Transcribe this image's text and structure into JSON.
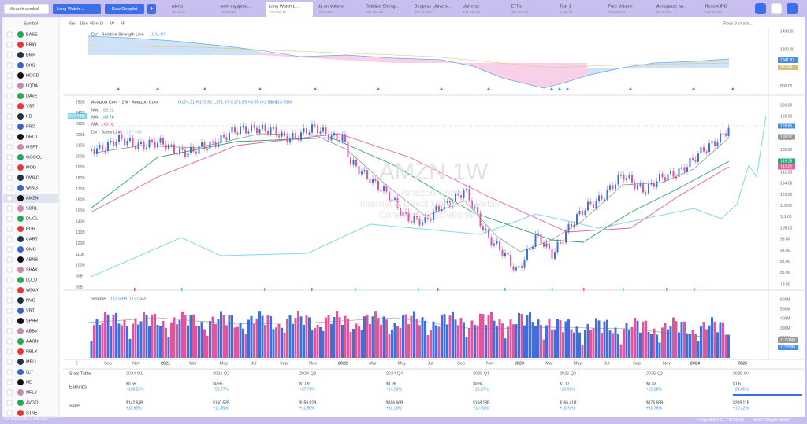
{
  "topbar": {
    "search": "Search symbol",
    "watchlist": "Long Watch ...",
    "new_button": "New Deeplist",
    "add_button": "+",
    "tabs": [
      {
        "name": "Alerts",
        "count": "86 Alerts"
      },
      {
        "name": "semi equipme...",
        "count": "18 Stocks"
      },
      {
        "name": "Long Watch L...",
        "count": "220 Stocks"
      },
      {
        "name": "Up on Volume",
        "count": "18 Stocks"
      },
      {
        "name": "Relative Streng...",
        "count": "287 Stocks"
      },
      {
        "name": "Deepvue Univers...",
        "count": "304 Stocks"
      },
      {
        "name": "Universe",
        "count": "244 Stocks"
      },
      {
        "name": "ETFs",
        "count": "462 Stocks"
      },
      {
        "name": "Test 1",
        "count": "0 Stocks"
      },
      {
        "name": "Pure Volume",
        "count": "306 Stocks"
      },
      {
        "name": "Aerospace an...",
        "count": "55 Stocks"
      },
      {
        "name": "Recent IPO",
        "count": "195 Stocks"
      }
    ]
  },
  "sidebar": {
    "header": "Symbol",
    "symbols": [
      "BASE",
      "BBIO",
      "BMR",
      "DKS",
      "HOOD",
      "LQDA",
      "DAVE",
      "VST",
      "KD",
      "FRO",
      "DRCT",
      "MSFT",
      "GOOGL",
      "MOD",
      "DWAC",
      "WING",
      "AMZN",
      "SDRL",
      "DUOL",
      "PGR",
      "CART",
      "CMG",
      "ABNB",
      "SHAK",
      "LULU",
      "WDAY",
      "NVO",
      "VRT",
      "SPHR",
      "ABBV",
      "AAON",
      "RBLX",
      "MELI",
      "LLY",
      "NE",
      "NFLX",
      "AVGO",
      "STNE"
    ],
    "footer": "1 of 220 results (0 selected)"
  },
  "toolbar": {
    "intervals": [
      "5m",
      "15m",
      "65m",
      "D",
      "W",
      "M"
    ],
    "layout": "Ross 3 charts..."
  },
  "rs_panel": {
    "label": "DV - Relative Strength Line",
    "value": "1041.97",
    "axis": [
      "1400.00",
      "1200.00",
      "1000.00",
      "800.00"
    ],
    "markers": [
      "1041.97",
      "987.69"
    ]
  },
  "price_panel": {
    "title": "Amazon.Com · 1W · Amazon.Com",
    "ohlc": "O174.31 H179.52 L171.47 C178.85 +3.55 (+2.01%)",
    "volume": "Vol 113.53M",
    "mas": [
      {
        "name": "MA",
        "value": "169.22"
      },
      {
        "name": "MA",
        "value": "149.26"
      },
      {
        "name": "MA",
        "value": "143.02"
      }
    ],
    "sales_line": "DV - Sales Line",
    "sales_value": "237.44B",
    "left_axis": [
      "250B",
      "240B",
      "230B",
      "220B",
      "210B",
      "200B",
      "190B",
      "180B",
      "170B",
      "160B",
      "150B",
      "140B",
      "130B",
      "120B",
      "110B",
      "100B",
      "90B",
      "80B"
    ],
    "right_axis": [
      "200.00",
      "190.00",
      "180.00",
      "170.00",
      "160.00",
      "150.00",
      "142.00",
      "134.00",
      "126.00",
      "118.00",
      "111.00",
      "105.00",
      "99.00",
      "93.00",
      "88.00",
      "83.00",
      "78.50"
    ],
    "markers": [
      "178.85",
      "169.22",
      "149.26",
      "143.02"
    ],
    "watermark": [
      "AMZN 1W",
      "Amazon.Com",
      "Internet & Direct Marketing Retail",
      "Consumer Discretionary"
    ]
  },
  "volume_panel": {
    "label": "Volume",
    "values": [
      "113.53M",
      "117.04M"
    ],
    "axis": [
      "600M",
      "500M",
      "400M",
      "300M",
      "200M",
      "100M"
    ],
    "markers": [
      "117.04M",
      "113.53M"
    ]
  },
  "x_axis": [
    "2",
    "Sep",
    "Nov",
    "2021",
    "Mar",
    "May",
    "Jul",
    "Sep",
    "Nov",
    "2022",
    "Mar",
    "May",
    "Jul",
    "Sep",
    "Nov",
    "2023",
    "Mar",
    "May",
    "Jul",
    "Sep",
    "Nov",
    "2024",
    "2025"
  ],
  "stats": {
    "title": "Stats Table",
    "columns": [
      "2024 Q1",
      "2024 Q2",
      "2024 Q3",
      "2024 Q4",
      "2025 Q1",
      "2025 Q2",
      "2025 Q3",
      "2025 Q4"
    ],
    "rows": [
      {
        "label": "Earnings",
        "cells": [
          {
            "value": "$0.65",
            "change": "+168.25%"
          },
          {
            "value": "$0.95",
            "change": "+50.77%"
          },
          {
            "value": "$1.09",
            "change": "+27.78%"
          },
          {
            "value": "$1.26",
            "change": "+24.56%"
          },
          {
            "value": "$0.94",
            "change": "+13.27%"
          },
          {
            "value": "$1.17",
            "change": "+22.96%"
          },
          {
            "value": "$1.33",
            "change": "+22.08%"
          },
          {
            "value": "$1.6",
            "change": "+24.85%"
          }
        ]
      },
      {
        "label": "Sales",
        "cells": [
          {
            "value": "$142.63B",
            "change": "+11.99%"
          },
          {
            "value": "$150.52B",
            "change": "+11.86%"
          },
          {
            "value": "$159.62B",
            "change": "+11.56%"
          },
          {
            "value": "$186.66B",
            "change": "+11.13%"
          },
          {
            "value": "$158.18B",
            "change": "+10.91%"
          },
          {
            "value": "$166.41B",
            "change": "+10.70%"
          },
          {
            "value": "$176.65B",
            "change": "+10.78%"
          },
          {
            "value": "$209.11B",
            "change": "+10.22%"
          }
        ]
      }
    ]
  },
  "status": {
    "time": "Friday, March 15, 7:36:46 AM",
    "market": "Market: Regular Market"
  }
}
